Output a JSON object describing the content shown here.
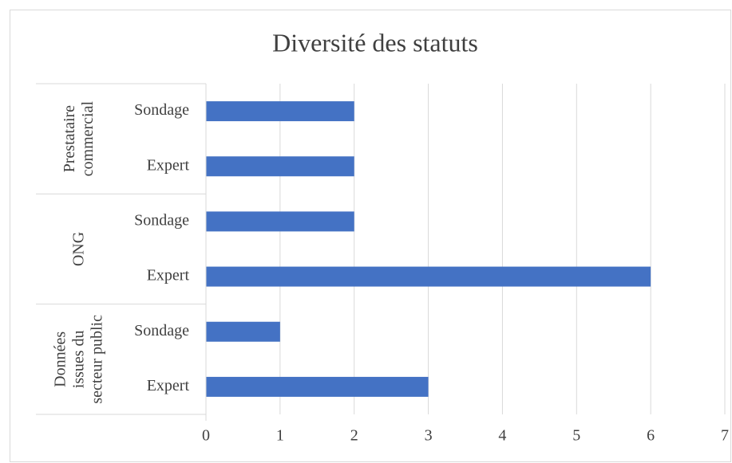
{
  "chart_data": {
    "type": "bar",
    "orientation": "horizontal",
    "title": "Diversité des statuts",
    "groups": [
      {
        "name": [
          "Prestataire",
          "commercial"
        ],
        "categories": [
          "Sondage",
          "Expert"
        ],
        "values": [
          2,
          2
        ]
      },
      {
        "name": [
          "ONG"
        ],
        "categories": [
          "Sondage",
          "Expert"
        ],
        "values": [
          2,
          6
        ]
      },
      {
        "name": [
          "Données",
          "issues du",
          "secteur public"
        ],
        "categories": [
          "Sondage",
          "Expert"
        ],
        "values": [
          1,
          3
        ]
      }
    ],
    "color": "#4472c4",
    "xlim": [
      0,
      7
    ],
    "xticks": [
      0,
      1,
      2,
      3,
      4,
      5,
      6,
      7
    ],
    "grid": true
  }
}
